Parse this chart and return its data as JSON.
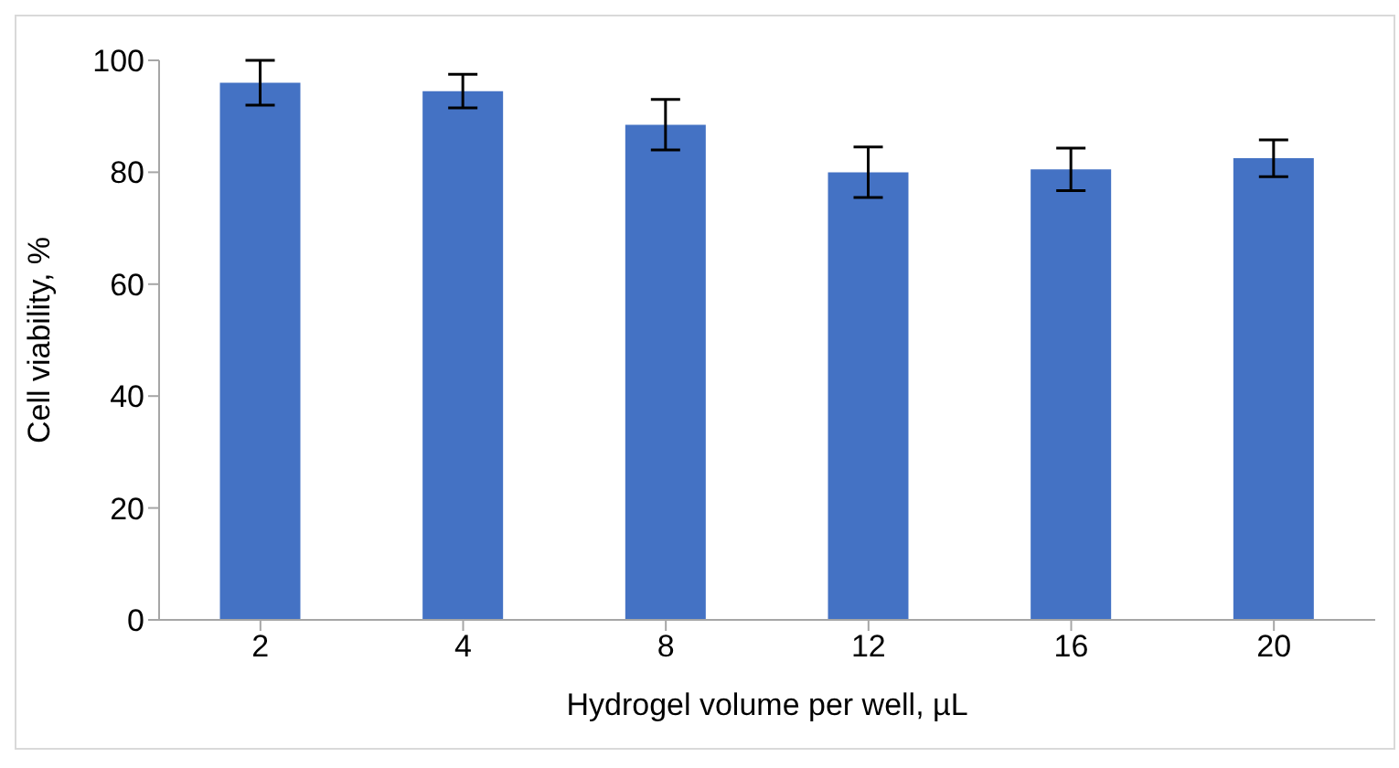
{
  "chart_data": {
    "type": "bar",
    "xlabel": "Hydrogel volume per well, µL",
    "ylabel": "Cell viability, %",
    "categories": [
      "2",
      "4",
      "8",
      "12",
      "16",
      "20"
    ],
    "values": [
      96,
      94.5,
      88.5,
      80,
      80.5,
      82.5
    ],
    "errors": [
      4,
      3,
      4.5,
      4.5,
      3.8,
      3.3
    ],
    "color": "#4472c4",
    "ylim": [
      0,
      100
    ],
    "yticks": [
      0,
      20,
      40,
      60,
      80,
      100
    ],
    "grid": false,
    "legend": false
  }
}
